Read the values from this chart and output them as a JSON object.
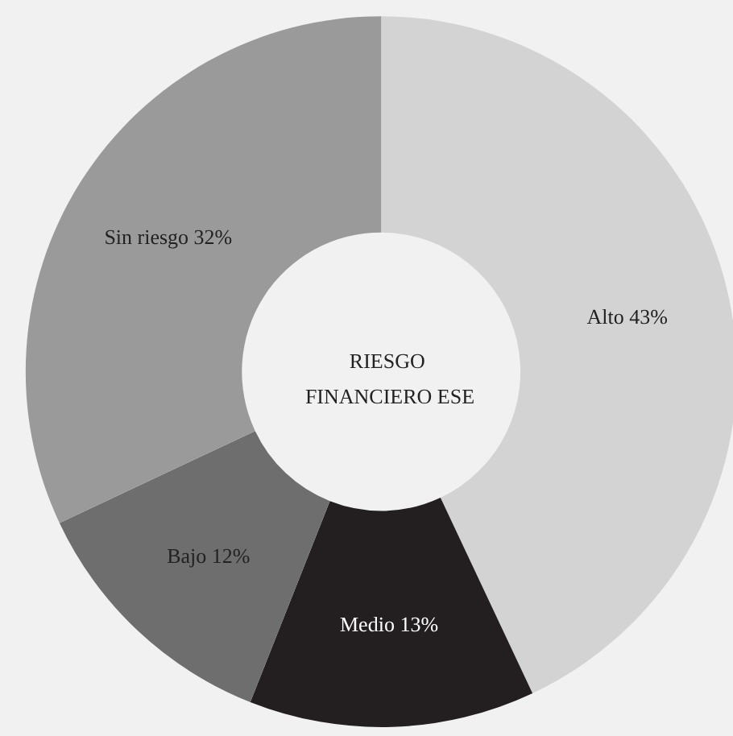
{
  "chart_data": {
    "type": "donut",
    "title": "RIESGO FINANCIERO ESE",
    "categories": [
      "Alto",
      "Medio",
      "Bajo",
      "Sin riesgo"
    ],
    "values": [
      43,
      13,
      12,
      32
    ],
    "value_labels": [
      "43%",
      "13%",
      "12%",
      "32%"
    ],
    "colors": [
      "#d3d3d3",
      "#231f20",
      "#6e6e6e",
      "#9a9a9a"
    ],
    "legend": false
  }
}
